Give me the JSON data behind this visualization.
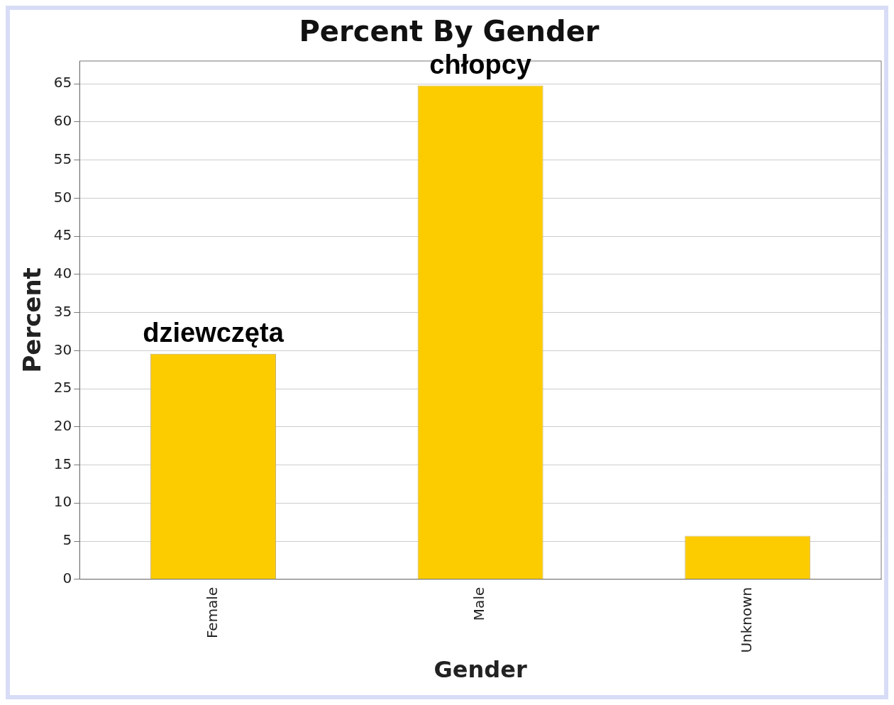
{
  "chart_data": {
    "type": "bar",
    "title": "Percent By Gender",
    "xlabel": "Gender",
    "ylabel": "Percent",
    "categories": [
      "Female",
      "Male",
      "Unknown"
    ],
    "values": [
      29.6,
      64.8,
      5.7
    ],
    "color": "#fccc00",
    "ylim": [
      0,
      68
    ],
    "yticks": [
      0,
      5,
      10,
      15,
      20,
      25,
      30,
      35,
      40,
      45,
      50,
      55,
      60,
      65
    ],
    "grid": "y",
    "annotations": [
      {
        "text": "dziewczęta",
        "x": "Female",
        "y": 29.6
      },
      {
        "text": "chłopcy",
        "x": "Male",
        "y": 64.8
      }
    ]
  }
}
